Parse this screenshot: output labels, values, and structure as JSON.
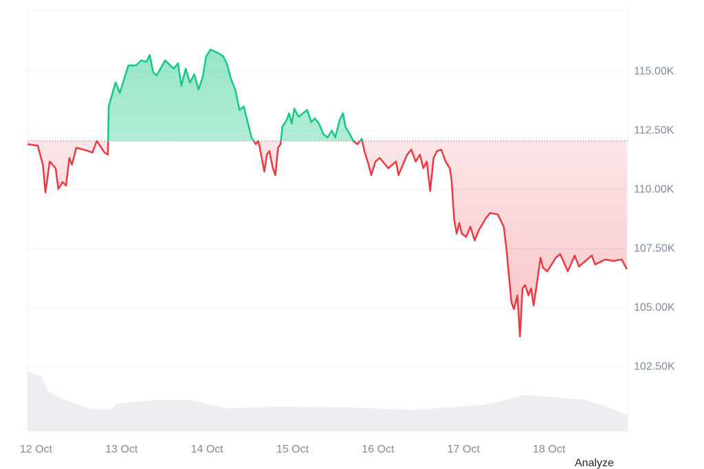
{
  "chart_data": {
    "type": "line",
    "baseline": 112060,
    "up_color": "#16c784",
    "down_color": "#ea3943",
    "grid": true,
    "xlim": [
      -0.1,
      6.92
    ],
    "ylim": [
      99770,
      117590
    ],
    "xticks": [
      {
        "value": 0,
        "label": "12 Oct"
      },
      {
        "value": 1,
        "label": "13 Oct"
      },
      {
        "value": 2,
        "label": "14 Oct"
      },
      {
        "value": 3,
        "label": "15 Oct"
      },
      {
        "value": 4,
        "label": "16 Oct"
      },
      {
        "value": 5,
        "label": "17 Oct"
      },
      {
        "value": 6,
        "label": "18 Oct"
      }
    ],
    "yticks": [
      {
        "value": 102500,
        "label": "102.50K"
      },
      {
        "value": 105000,
        "label": "105.00K"
      },
      {
        "value": 107500,
        "label": "107.50K"
      },
      {
        "value": 110000,
        "label": "110.00K"
      },
      {
        "value": 112500,
        "label": "112.50K"
      },
      {
        "value": 115000,
        "label": "115.00K"
      }
    ],
    "x": [
      -0.1,
      0.02,
      0.08,
      0.11,
      0.16,
      0.23,
      0.26,
      0.31,
      0.35,
      0.39,
      0.42,
      0.47,
      0.56,
      0.66,
      0.71,
      0.8,
      0.84,
      0.85,
      0.93,
      0.98,
      1.08,
      1.17,
      1.23,
      1.29,
      1.33,
      1.37,
      1.41,
      1.51,
      1.61,
      1.66,
      1.7,
      1.75,
      1.8,
      1.85,
      1.9,
      1.95,
      1.99,
      2.04,
      2.14,
      2.19,
      2.23,
      2.28,
      2.33,
      2.38,
      2.43,
      2.48,
      2.52,
      2.57,
      2.6,
      2.64,
      2.67,
      2.7,
      2.73,
      2.77,
      2.8,
      2.83,
      2.86,
      2.88,
      2.93,
      2.96,
      2.99,
      3.02,
      3.07,
      3.17,
      3.22,
      3.26,
      3.31,
      3.36,
      3.41,
      3.46,
      3.5,
      3.55,
      3.59,
      3.62,
      3.67,
      3.71,
      3.76,
      3.81,
      3.84,
      3.89,
      3.92,
      3.97,
      4.02,
      4.12,
      4.21,
      4.24,
      4.29,
      4.34,
      4.39,
      4.44,
      4.49,
      4.53,
      4.57,
      4.61,
      4.65,
      4.69,
      4.74,
      4.79,
      4.84,
      4.86,
      4.89,
      4.92,
      4.95,
      4.98,
      5.03,
      5.08,
      5.13,
      5.18,
      5.26,
      5.31,
      5.4,
      5.47,
      5.5,
      5.53,
      5.56,
      5.59,
      5.63,
      5.66,
      5.69,
      5.72,
      5.76,
      5.79,
      5.82,
      5.85,
      5.9,
      5.93,
      5.98,
      6.08,
      6.13,
      6.22,
      6.3,
      6.35,
      6.5,
      6.54,
      6.66,
      6.75,
      6.85,
      6.91
    ],
    "values": [
      111920,
      111860,
      111050,
      109880,
      111190,
      110900,
      110030,
      110320,
      110170,
      111340,
      111050,
      111770,
      111690,
      111570,
      112060,
      111570,
      111480,
      113520,
      114540,
      114100,
      115260,
      115260,
      115470,
      115410,
      115700,
      114970,
      114830,
      115470,
      115120,
      115350,
      114390,
      115120,
      114530,
      114880,
      114240,
      114770,
      115640,
      115930,
      115760,
      115640,
      115350,
      114680,
      114240,
      113370,
      113520,
      112790,
      112210,
      111920,
      112060,
      111340,
      110760,
      111480,
      111630,
      110900,
      110610,
      111770,
      111920,
      112650,
      112940,
      113230,
      112790,
      113430,
      113080,
      113370,
      112850,
      113020,
      112790,
      112350,
      112210,
      112500,
      112210,
      112940,
      113230,
      112650,
      112350,
      112060,
      111920,
      112150,
      111630,
      111050,
      110610,
      111190,
      111340,
      110900,
      111190,
      110610,
      111050,
      111480,
      111690,
      111190,
      111480,
      110900,
      111190,
      109940,
      111340,
      111630,
      111690,
      111190,
      110900,
      110410,
      108720,
      108140,
      108580,
      108140,
      107990,
      108430,
      107850,
      108290,
      108780,
      109010,
      108950,
      108430,
      107560,
      106400,
      105230,
      104940,
      105520,
      103780,
      105810,
      105960,
      105520,
      105810,
      105090,
      105810,
      107120,
      106690,
      106540,
      107120,
      107270,
      106540,
      107210,
      106740,
      107210,
      106830,
      107040,
      106980,
      107040,
      106630
    ],
    "action": "Analyze"
  }
}
